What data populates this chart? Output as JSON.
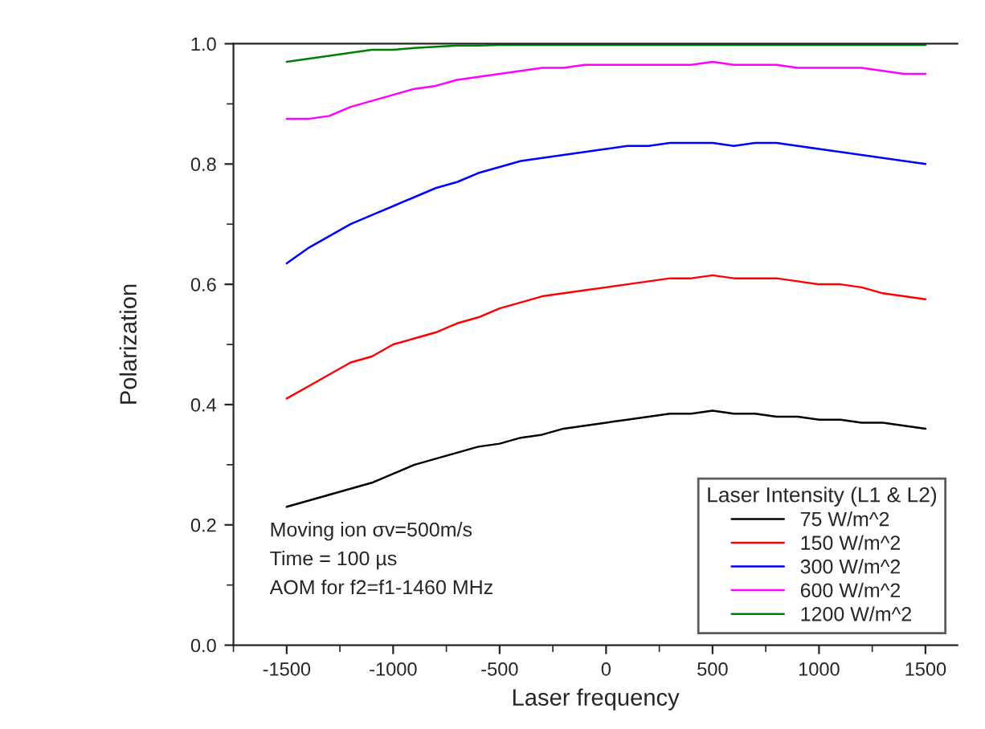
{
  "chart_data": {
    "type": "line",
    "xlabel": "Laser frequency",
    "ylabel": "Polarization",
    "x": [
      -1500,
      -1400,
      -1300,
      -1200,
      -1100,
      -1000,
      -900,
      -800,
      -700,
      -600,
      -500,
      -400,
      -300,
      -200,
      -100,
      0,
      100,
      200,
      300,
      400,
      500,
      600,
      700,
      800,
      900,
      1000,
      1100,
      1200,
      1300,
      1400,
      1500
    ],
    "series": [
      {
        "name": "75 W/m^2",
        "color": "#000000",
        "values": [
          0.23,
          0.24,
          0.25,
          0.26,
          0.27,
          0.285,
          0.3,
          0.31,
          0.32,
          0.33,
          0.335,
          0.345,
          0.35,
          0.36,
          0.365,
          0.37,
          0.375,
          0.38,
          0.385,
          0.385,
          0.39,
          0.385,
          0.385,
          0.38,
          0.38,
          0.375,
          0.375,
          0.37,
          0.37,
          0.365,
          0.36
        ]
      },
      {
        "name": "150 W/m^2",
        "color": "#ff0000",
        "values": [
          0.41,
          0.43,
          0.45,
          0.47,
          0.48,
          0.5,
          0.51,
          0.52,
          0.535,
          0.545,
          0.56,
          0.57,
          0.58,
          0.585,
          0.59,
          0.595,
          0.6,
          0.605,
          0.61,
          0.61,
          0.615,
          0.61,
          0.61,
          0.61,
          0.605,
          0.6,
          0.6,
          0.595,
          0.585,
          0.58,
          0.575
        ]
      },
      {
        "name": "300 W/m^2",
        "color": "#0000ff",
        "values": [
          0.635,
          0.66,
          0.68,
          0.7,
          0.715,
          0.73,
          0.745,
          0.76,
          0.77,
          0.785,
          0.795,
          0.805,
          0.81,
          0.815,
          0.82,
          0.825,
          0.83,
          0.83,
          0.835,
          0.835,
          0.835,
          0.83,
          0.835,
          0.835,
          0.83,
          0.825,
          0.82,
          0.815,
          0.81,
          0.805,
          0.8
        ]
      },
      {
        "name": "600 W/m^2",
        "color": "#ff00ff",
        "values": [
          0.875,
          0.875,
          0.88,
          0.895,
          0.905,
          0.915,
          0.925,
          0.93,
          0.94,
          0.945,
          0.95,
          0.955,
          0.96,
          0.96,
          0.965,
          0.965,
          0.965,
          0.965,
          0.965,
          0.965,
          0.97,
          0.965,
          0.965,
          0.965,
          0.96,
          0.96,
          0.96,
          0.96,
          0.955,
          0.95,
          0.95
        ]
      },
      {
        "name": "1200 W/m^2",
        "color": "#008000",
        "values": [
          0.97,
          0.975,
          0.98,
          0.985,
          0.99,
          0.99,
          0.993,
          0.995,
          0.997,
          0.997,
          0.998,
          0.998,
          0.998,
          0.998,
          0.998,
          0.998,
          0.998,
          0.998,
          0.998,
          0.998,
          0.998,
          0.998,
          0.998,
          0.998,
          0.998,
          0.998,
          0.998,
          0.998,
          0.998,
          0.998,
          0.998
        ]
      }
    ],
    "legend_title": "Laser Intensity (L1 & L2)",
    "legend": "bottom right",
    "annotations": [
      "Moving ion σv=500m/s",
      "Time = 100 µs",
      "AOM for f2=f1-1460 MHz"
    ],
    "xlim": [
      -1750,
      1650
    ],
    "ylim": [
      0.0,
      1.0
    ],
    "xticks": [
      -1500,
      -1000,
      -500,
      0,
      500,
      1000,
      1500
    ],
    "yticks": [
      {
        "value": 0.0,
        "label": "0.0"
      },
      0.2,
      0.4,
      0.6,
      0.8,
      {
        "value": 1.0,
        "label": "1.0"
      }
    ],
    "grid": false,
    "marker": "none",
    "line_style": "solid"
  }
}
